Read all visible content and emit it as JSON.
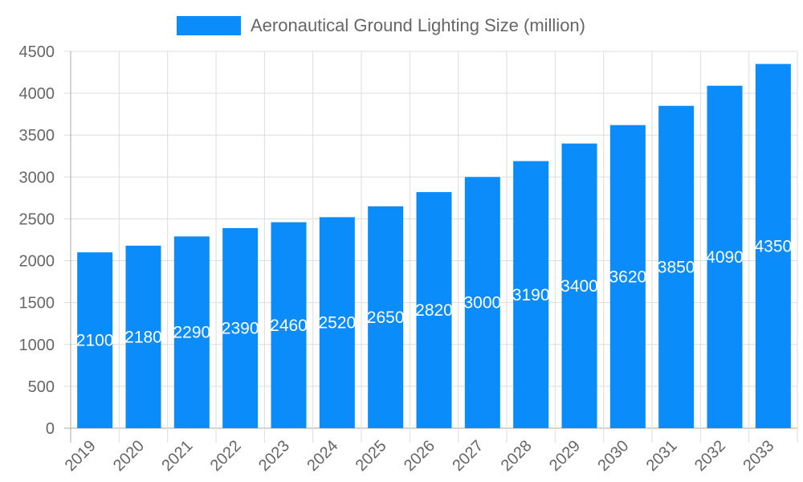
{
  "chart_data": {
    "type": "bar",
    "categories": [
      "2019",
      "2020",
      "2021",
      "2022",
      "2023",
      "2024",
      "2025",
      "2026",
      "2027",
      "2028",
      "2029",
      "2030",
      "2031",
      "2032",
      "2033"
    ],
    "series": [
      {
        "name": "Aeronautical Ground Lighting Size (million)",
        "values": [
          2100,
          2180,
          2290,
          2390,
          2460,
          2520,
          2650,
          2820,
          3000,
          3190,
          3400,
          3620,
          3850,
          4090,
          4350
        ]
      }
    ],
    "ylim": [
      0,
      4500
    ],
    "yticks": [
      0,
      500,
      1000,
      1500,
      2000,
      2500,
      3000,
      3500,
      4000,
      4500
    ],
    "grid": true,
    "legend": "top",
    "data_labels": true,
    "colors": {
      "bar": "#0a8cfa",
      "grid": "#dddddd",
      "text": "#666666"
    }
  }
}
